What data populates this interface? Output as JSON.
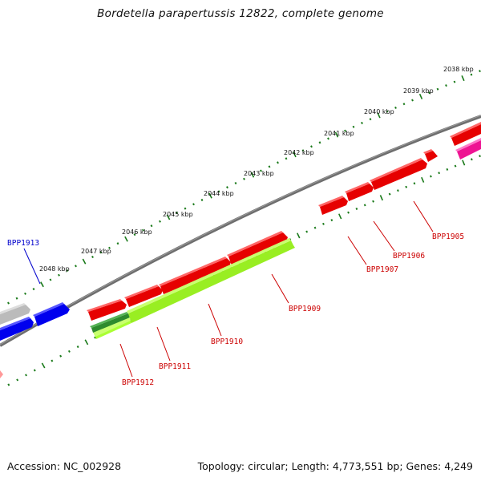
{
  "title": "Bordetella parapertussis 12822, complete genome",
  "footer": {
    "accession": "Accession: NC_002928",
    "summary": "Topology: circular; Length: 4,773,551 bp; Genes: 4,249"
  },
  "colors": {
    "backbone": "#777777",
    "tick": "#1a7a1a",
    "forward_gene": "#ff0000",
    "reverse_gene": "#0000ff",
    "lime_gene": "#aaff33",
    "dark_green_gene": "#2e8b2e",
    "magenta_gene": "#ee1493",
    "grey_gene": "#bbbbbb",
    "label_red": "#cc0000",
    "label_blue": "#0000cc"
  },
  "scale_labels": [
    "2038 kbp",
    "2039 kbp",
    "2040 kbp",
    "2041 kbp",
    "2042 kbp",
    "2043 kbp",
    "2044 kbp",
    "2045 kbp",
    "2046 kbp",
    "2047 kbp",
    "2048 kbp"
  ],
  "gene_labels": [
    {
      "name": "BPP1905",
      "color": "red"
    },
    {
      "name": "BPP1906",
      "color": "red"
    },
    {
      "name": "BPP1907",
      "color": "red"
    },
    {
      "name": "BPP1909",
      "color": "red"
    },
    {
      "name": "BPP1910",
      "color": "red"
    },
    {
      "name": "BPP1911",
      "color": "red"
    },
    {
      "name": "BPP1912",
      "color": "red"
    },
    {
      "name": "BPP1913",
      "color": "blue"
    }
  ]
}
